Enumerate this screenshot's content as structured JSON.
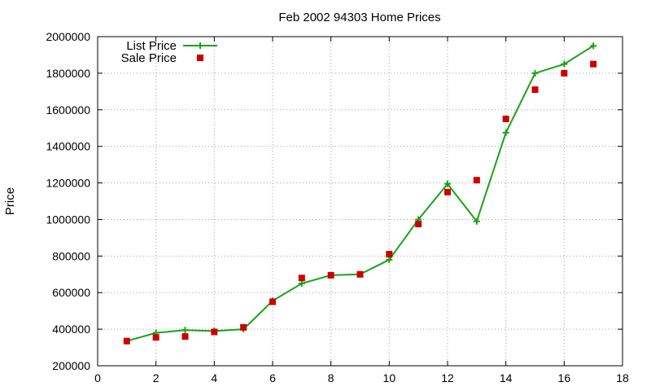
{
  "chart_data": {
    "type": "line",
    "title": "Feb 2002 94303 Home Prices",
    "xlabel": "",
    "ylabel": "Price",
    "xlim": [
      0,
      18
    ],
    "ylim": [
      200000,
      2000000
    ],
    "xticks": [
      0,
      2,
      4,
      6,
      8,
      10,
      12,
      14,
      16,
      18
    ],
    "yticks": [
      200000,
      400000,
      600000,
      800000,
      1000000,
      1200000,
      1400000,
      1600000,
      1800000,
      2000000
    ],
    "grid": true,
    "legend_position": "top-left",
    "series": [
      {
        "name": "List Price",
        "style": "line-with-plus-markers",
        "color": "#1aa31a",
        "x": [
          1,
          2,
          3,
          4,
          5,
          6,
          7,
          8,
          9,
          10,
          11,
          12,
          13,
          14,
          15,
          16,
          17
        ],
        "y": [
          335000,
          380000,
          395000,
          390000,
          400000,
          555000,
          650000,
          695000,
          700000,
          780000,
          1000000,
          1195000,
          990000,
          1475000,
          1800000,
          1850000,
          1950000
        ]
      },
      {
        "name": "Sale Price",
        "style": "square-markers",
        "color": "#cc0000",
        "x": [
          1,
          2,
          3,
          4,
          5,
          6,
          7,
          8,
          9,
          10,
          11,
          12,
          13,
          14,
          15,
          16,
          17
        ],
        "y": [
          335000,
          355000,
          360000,
          385000,
          410000,
          550000,
          680000,
          695000,
          700000,
          810000,
          975000,
          1150000,
          1215000,
          1550000,
          1710000,
          1800000,
          1850000
        ]
      }
    ]
  }
}
